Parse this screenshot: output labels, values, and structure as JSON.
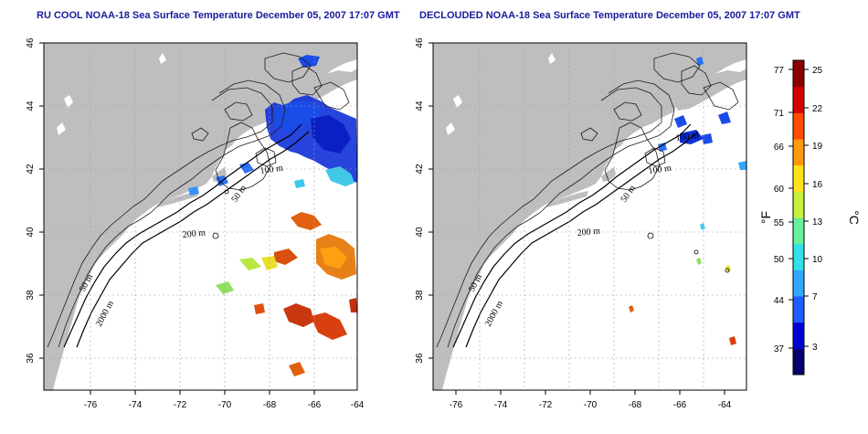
{
  "panels": [
    {
      "id": "left",
      "title": "RU COOL NOAA-18 Sea Surface Temperature December 05, 2007 17:07 GMT",
      "x_ticks": [
        "-76",
        "-74",
        "-72",
        "-70",
        "-68",
        "-66",
        "-64"
      ],
      "y_ticks": [
        "36",
        "38",
        "40",
        "42",
        "44",
        "46"
      ],
      "contour_labels": [
        "100 m",
        "50 m",
        "200 m",
        "50 m",
        "2000 m"
      ]
    },
    {
      "id": "right",
      "title": "DECLOUDED NOAA-18 Sea Surface Temperature December 05, 2007 17:07 GMT",
      "x_ticks": [
        "-76",
        "-74",
        "-72",
        "-70",
        "-68",
        "-66",
        "-64"
      ],
      "y_ticks": [
        "36",
        "38",
        "40",
        "42",
        "44",
        "46"
      ],
      "contour_labels": [
        "100 m",
        "100 m",
        "50 m",
        "200 m",
        "50 m",
        "2000 m"
      ]
    }
  ],
  "colorbar": {
    "fahrenheit_label": "°F",
    "celsius_label": "°C",
    "fahrenheit_ticks": [
      "77",
      "71",
      "66",
      "60",
      "55",
      "50",
      "44",
      "37"
    ],
    "celsius_ticks": [
      "25",
      "22",
      "19",
      "16",
      "13",
      "10",
      "7",
      "3"
    ],
    "colors": [
      "#08006b",
      "#0000d6",
      "#1f5cff",
      "#31a8ff",
      "#31e0e8",
      "#68f09a",
      "#c8f040",
      "#ffe21a",
      "#ff9a0d",
      "#ff4a00",
      "#d20000",
      "#8a0000"
    ]
  },
  "colors": {
    "land": "#bebebe",
    "sea": "#ffffff",
    "title": "#1a1a9c"
  }
}
